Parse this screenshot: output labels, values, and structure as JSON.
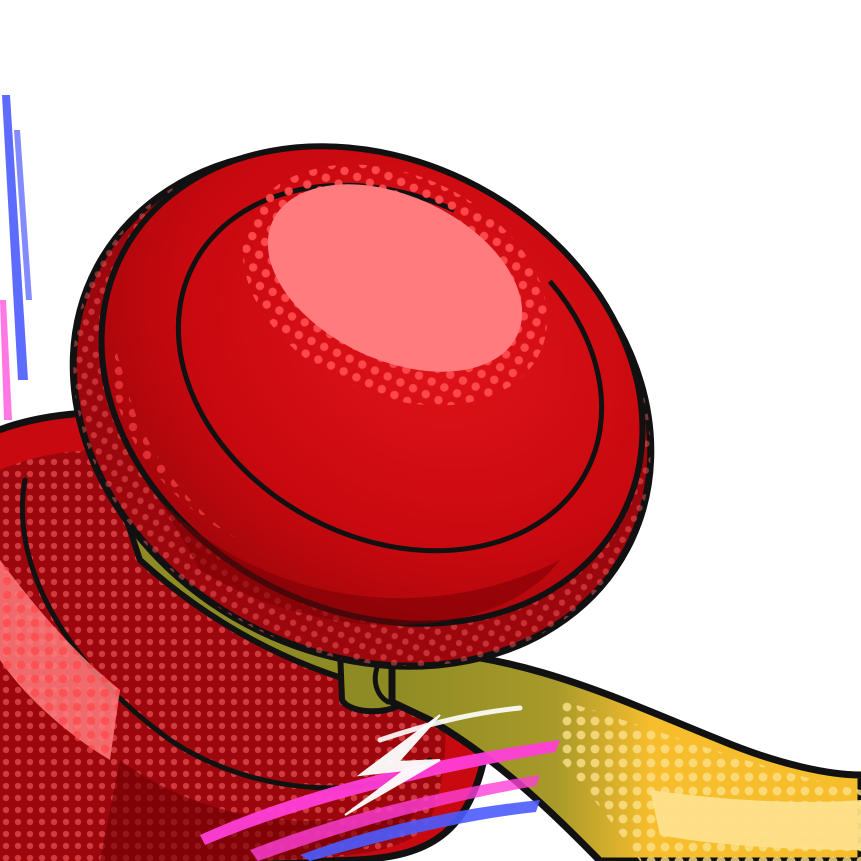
{
  "illustration": {
    "subject": "red-yoyo",
    "colors": {
      "background": "#ffffff",
      "outline": "#111111",
      "red_main": "#c8090f",
      "red_dark": "#7a0004",
      "red_highlight": "#ff7b7e",
      "red_dot": "#ff3a3e",
      "axle_olive": "#8f8b24",
      "axle_dark": "#5d5a10",
      "string_gold": "#f6bd2d",
      "string_light": "#fde08a",
      "speed_blue": "#4d5bff",
      "speed_magenta": "#ff3ed8",
      "spark_white": "#ffffff"
    }
  }
}
